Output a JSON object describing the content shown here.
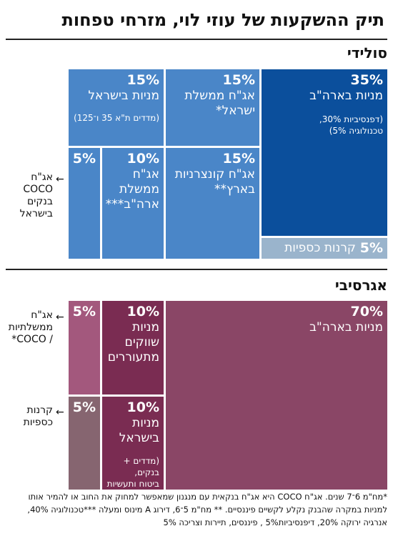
{
  "title": "תיק ההשקעות של עוזי לוי, מזרחי טפחות",
  "sections": {
    "solid": "סולידי",
    "aggressive": "אגרסיבי"
  },
  "chart_data": [
    {
      "type": "treemap",
      "title": "סולידי",
      "items": [
        {
          "value": 35,
          "pct": "35%",
          "label": "מניות בארה\"ב",
          "note": "(דפנסיביות 30%,\nטכנולוגיה 5%)",
          "color": "#0b4f9c"
        },
        {
          "value": 15,
          "pct": "15%",
          "label": "מניות בישראל",
          "note": "(מדדים ת\"א 35 ו־125)",
          "color": "#4a86c8"
        },
        {
          "value": 15,
          "pct": "15%",
          "label": "אג\"ח ממשלת\nישראל*",
          "note": "",
          "color": "#4a86c8"
        },
        {
          "value": 15,
          "pct": "15%",
          "label": "אג\"ח קונצרניות\nבארץ**",
          "note": "",
          "color": "#4a86c8"
        },
        {
          "value": 10,
          "pct": "10%",
          "label": "אג\"ח\nממשלת\nארה\"ב***",
          "note": "",
          "color": "#4a86c8"
        },
        {
          "value": 5,
          "pct": "5%",
          "label": "",
          "note": "",
          "color": "#4a86c8"
        },
        {
          "value": 5,
          "pct": "5%",
          "label": "קרנות כספיות",
          "note": "",
          "color": "#9ab4cc"
        }
      ],
      "side_labels": [
        {
          "text": "אג\"ח\nCOCO\nבנקים\nבישראל"
        }
      ]
    },
    {
      "type": "treemap",
      "title": "אגרסיבי",
      "items": [
        {
          "value": 70,
          "pct": "70%",
          "label": "מניות בארה\"ב",
          "note": "",
          "color": "#8a4666"
        },
        {
          "value": 10,
          "pct": "10%",
          "label": "מניות\nשווקים\nמתעוררים",
          "note": "",
          "color": "#7a2c52"
        },
        {
          "value": 10,
          "pct": "10%",
          "label": "מניות\nבישראל",
          "note": "(מדדים + בנקים,\nביטוח ותעשיות\nביטחוניות)",
          "color": "#7a2c52"
        },
        {
          "value": 5,
          "pct": "5%",
          "label": "",
          "note": "",
          "color": "#a3587d"
        },
        {
          "value": 5,
          "pct": "5%",
          "label": "",
          "note": "",
          "color": "#866570"
        }
      ],
      "side_labels": [
        {
          "text": "אג\"ח\nממשלתיות\n/ COCO*"
        },
        {
          "text": "קרנות\nכספיות"
        }
      ]
    }
  ],
  "arrow_glyph": "←",
  "footnote": "*מח\"מ 6־7 שנים. אג\"ח COCO היא אג\"ח בנקאית עם מנגנון שמאפשר למחוק את החוב או להמיר אותו\nלמניות במקרה שהבנק נקלע לקשיים פיננסיים. ** מח\"מ 5־6, דירוג A מינוס ומעלה ***טכנולוגיה 40%,\nאנרגיה ירוקה 20%, דיפנסיביות5% , פיננסים, תיירות וצריכה 5%"
}
